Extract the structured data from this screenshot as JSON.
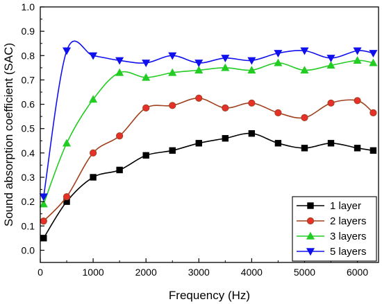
{
  "chart_data": {
    "type": "line",
    "title": "",
    "xlabel": "Frequency (Hz)",
    "ylabel": "Sound absorption coefficient (SAC)",
    "xlim": [
      0,
      6400
    ],
    "ylim": [
      -0.05,
      1.0
    ],
    "xticks": [
      0,
      1000,
      2000,
      3000,
      4000,
      5000,
      6000
    ],
    "yticks": [
      0.0,
      0.1,
      0.2,
      0.3,
      0.4,
      0.5,
      0.6,
      0.7,
      0.8,
      0.9,
      1.0
    ],
    "xtick_labels": [
      "0",
      "1000",
      "2000",
      "3000",
      "4000",
      "5000",
      "6000"
    ],
    "ytick_labels": [
      "0.0",
      "0.1",
      "0.2",
      "0.3",
      "0.4",
      "0.5",
      "0.6",
      "0.7",
      "0.8",
      "0.9",
      "1.0"
    ],
    "grid": false,
    "legend_position": "bottom-right",
    "x": [
      63,
      500,
      1000,
      1500,
      2000,
      2500,
      3000,
      3500,
      4000,
      4500,
      5000,
      5500,
      6000,
      6300
    ],
    "series": [
      {
        "name": "1 layer",
        "marker": "square",
        "color": "#000000",
        "values": [
          0.05,
          0.2,
          0.3,
          0.33,
          0.39,
          0.41,
          0.44,
          0.46,
          0.48,
          0.44,
          0.42,
          0.44,
          0.42,
          0.41
        ]
      },
      {
        "name": "2 layers",
        "marker": "circle",
        "color": "#a0401c",
        "fill": "#e8302a",
        "values": [
          0.12,
          0.22,
          0.4,
          0.47,
          0.585,
          0.595,
          0.625,
          0.585,
          0.605,
          0.565,
          0.545,
          0.605,
          0.615,
          0.565
        ]
      },
      {
        "name": "3 layers",
        "marker": "triangle-up",
        "color": "#22cc22",
        "values": [
          0.19,
          0.44,
          0.62,
          0.73,
          0.71,
          0.73,
          0.74,
          0.75,
          0.74,
          0.77,
          0.74,
          0.76,
          0.78,
          0.77
        ]
      },
      {
        "name": "5 layers",
        "marker": "triangle-down",
        "color": "#1010ee",
        "values": [
          0.22,
          0.82,
          0.8,
          0.78,
          0.77,
          0.8,
          0.77,
          0.79,
          0.78,
          0.81,
          0.82,
          0.79,
          0.82,
          0.81
        ]
      }
    ]
  }
}
